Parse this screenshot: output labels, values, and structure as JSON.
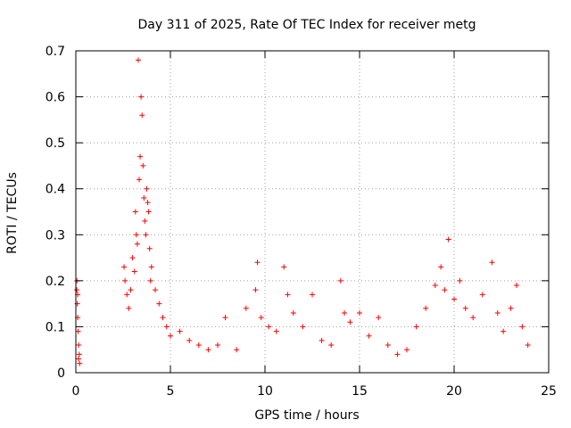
{
  "chart_data": {
    "type": "scatter",
    "title": "Day 311 of 2025, Rate Of TEC Index for receiver metg",
    "xlabel": "GPS time / hours",
    "ylabel": "ROTI / TECUs",
    "xlim": [
      0,
      25
    ],
    "ylim": [
      0,
      0.7
    ],
    "xticks": [
      0,
      5,
      10,
      15,
      20,
      25
    ],
    "xtick_labels": [
      "0",
      "5",
      "10",
      "15",
      "20",
      "25"
    ],
    "yticks": [
      0,
      0.1,
      0.2,
      0.3,
      0.4,
      0.5,
      0.6,
      0.7
    ],
    "ytick_labels": [
      "0",
      "0.1",
      "0.2",
      "0.3",
      "0.4",
      "0.5",
      "0.6",
      "0.7"
    ],
    "grid": true,
    "marker": "+",
    "color": "#ff0000",
    "series": [
      {
        "name": "ROTI",
        "points": [
          [
            0.05,
            0.18
          ],
          [
            0.08,
            0.15
          ],
          [
            0.1,
            0.12
          ],
          [
            0.12,
            0.09
          ],
          [
            0.15,
            0.06
          ],
          [
            0.18,
            0.04
          ],
          [
            0.2,
            0.02
          ],
          [
            0.06,
            0.2
          ],
          [
            0.1,
            0.17
          ],
          [
            0.14,
            0.03
          ],
          [
            2.55,
            0.23
          ],
          [
            2.6,
            0.2
          ],
          [
            2.7,
            0.17
          ],
          [
            2.8,
            0.14
          ],
          [
            2.9,
            0.18
          ],
          [
            3.0,
            0.25
          ],
          [
            3.1,
            0.22
          ],
          [
            3.15,
            0.35
          ],
          [
            3.2,
            0.3
          ],
          [
            3.25,
            0.28
          ],
          [
            3.3,
            0.68
          ],
          [
            3.35,
            0.42
          ],
          [
            3.4,
            0.47
          ],
          [
            3.45,
            0.6
          ],
          [
            3.5,
            0.56
          ],
          [
            3.55,
            0.45
          ],
          [
            3.6,
            0.38
          ],
          [
            3.65,
            0.33
          ],
          [
            3.7,
            0.3
          ],
          [
            3.75,
            0.4
          ],
          [
            3.8,
            0.37
          ],
          [
            3.85,
            0.35
          ],
          [
            3.9,
            0.27
          ],
          [
            3.95,
            0.2
          ],
          [
            4.0,
            0.23
          ],
          [
            4.2,
            0.18
          ],
          [
            4.4,
            0.15
          ],
          [
            4.6,
            0.12
          ],
          [
            4.8,
            0.1
          ],
          [
            5.0,
            0.08
          ],
          [
            5.5,
            0.09
          ],
          [
            6.0,
            0.07
          ],
          [
            6.5,
            0.06
          ],
          [
            7.0,
            0.05
          ],
          [
            7.5,
            0.06
          ],
          [
            7.9,
            0.12
          ],
          [
            8.5,
            0.05
          ],
          [
            9.0,
            0.14
          ],
          [
            9.5,
            0.18
          ],
          [
            9.6,
            0.24
          ],
          [
            9.8,
            0.12
          ],
          [
            10.2,
            0.1
          ],
          [
            10.6,
            0.09
          ],
          [
            11.0,
            0.23
          ],
          [
            11.2,
            0.17
          ],
          [
            11.5,
            0.13
          ],
          [
            12.0,
            0.1
          ],
          [
            12.5,
            0.17
          ],
          [
            13.0,
            0.07
          ],
          [
            13.5,
            0.06
          ],
          [
            14.0,
            0.2
          ],
          [
            14.2,
            0.13
          ],
          [
            14.5,
            0.11
          ],
          [
            15.0,
            0.13
          ],
          [
            15.5,
            0.08
          ],
          [
            16.0,
            0.12
          ],
          [
            16.5,
            0.06
          ],
          [
            17.0,
            0.04
          ],
          [
            17.5,
            0.05
          ],
          [
            18.0,
            0.1
          ],
          [
            18.5,
            0.14
          ],
          [
            19.0,
            0.19
          ],
          [
            19.3,
            0.23
          ],
          [
            19.5,
            0.18
          ],
          [
            19.7,
            0.29
          ],
          [
            20.0,
            0.16
          ],
          [
            20.3,
            0.2
          ],
          [
            20.6,
            0.14
          ],
          [
            21.0,
            0.12
          ],
          [
            21.5,
            0.17
          ],
          [
            22.0,
            0.24
          ],
          [
            22.3,
            0.13
          ],
          [
            22.6,
            0.09
          ],
          [
            23.0,
            0.14
          ],
          [
            23.3,
            0.19
          ],
          [
            23.6,
            0.1
          ],
          [
            23.9,
            0.06
          ]
        ]
      }
    ]
  }
}
